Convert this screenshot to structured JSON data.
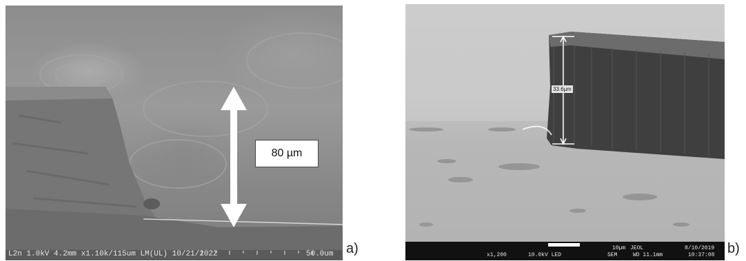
{
  "panel_a": {
    "letter": "a)",
    "measurement_label": "80 µm",
    "info_bar": "L2n 1.0kV 4.2mm x1.10k/115um LM(UL) 10/21/2022",
    "scale_label": "50.0um"
  },
  "panel_b": {
    "letter": "b)",
    "measurement_label": "33.6µm",
    "info_bar": {
      "magnification": "x1,200",
      "voltage": "10.0kV LED",
      "scale_label": "10µm",
      "brand": "JEOL",
      "mode": "SEM",
      "working_distance": "WD 11.1mm",
      "date": "8/10/2019",
      "time": "10:37:08"
    }
  }
}
